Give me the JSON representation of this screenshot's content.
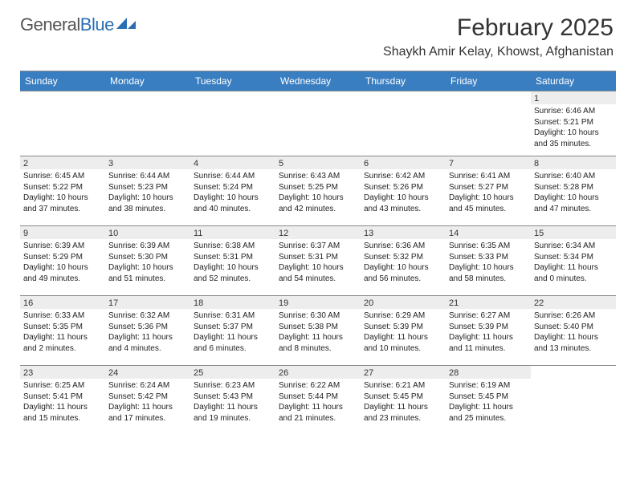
{
  "brand": {
    "name_gray": "General",
    "name_blue": "Blue"
  },
  "title": "February 2025",
  "location": "Shaykh Amir Kelay, Khowst, Afghanistan",
  "day_headers": [
    "Sunday",
    "Monday",
    "Tuesday",
    "Wednesday",
    "Thursday",
    "Friday",
    "Saturday"
  ],
  "colors": {
    "header_bg": "#3a7ec2",
    "header_text": "#ffffff",
    "daynum_bg": "#ededed",
    "rule": "#8a8a8a",
    "logo_blue": "#2a6fb5",
    "text": "#222222"
  },
  "weeks": [
    [
      {
        "n": "",
        "lines": []
      },
      {
        "n": "",
        "lines": []
      },
      {
        "n": "",
        "lines": []
      },
      {
        "n": "",
        "lines": []
      },
      {
        "n": "",
        "lines": []
      },
      {
        "n": "",
        "lines": []
      },
      {
        "n": "1",
        "lines": [
          "Sunrise: 6:46 AM",
          "Sunset: 5:21 PM",
          "Daylight: 10 hours and 35 minutes."
        ]
      }
    ],
    [
      {
        "n": "2",
        "lines": [
          "Sunrise: 6:45 AM",
          "Sunset: 5:22 PM",
          "Daylight: 10 hours and 37 minutes."
        ]
      },
      {
        "n": "3",
        "lines": [
          "Sunrise: 6:44 AM",
          "Sunset: 5:23 PM",
          "Daylight: 10 hours and 38 minutes."
        ]
      },
      {
        "n": "4",
        "lines": [
          "Sunrise: 6:44 AM",
          "Sunset: 5:24 PM",
          "Daylight: 10 hours and 40 minutes."
        ]
      },
      {
        "n": "5",
        "lines": [
          "Sunrise: 6:43 AM",
          "Sunset: 5:25 PM",
          "Daylight: 10 hours and 42 minutes."
        ]
      },
      {
        "n": "6",
        "lines": [
          "Sunrise: 6:42 AM",
          "Sunset: 5:26 PM",
          "Daylight: 10 hours and 43 minutes."
        ]
      },
      {
        "n": "7",
        "lines": [
          "Sunrise: 6:41 AM",
          "Sunset: 5:27 PM",
          "Daylight: 10 hours and 45 minutes."
        ]
      },
      {
        "n": "8",
        "lines": [
          "Sunrise: 6:40 AM",
          "Sunset: 5:28 PM",
          "Daylight: 10 hours and 47 minutes."
        ]
      }
    ],
    [
      {
        "n": "9",
        "lines": [
          "Sunrise: 6:39 AM",
          "Sunset: 5:29 PM",
          "Daylight: 10 hours and 49 minutes."
        ]
      },
      {
        "n": "10",
        "lines": [
          "Sunrise: 6:39 AM",
          "Sunset: 5:30 PM",
          "Daylight: 10 hours and 51 minutes."
        ]
      },
      {
        "n": "11",
        "lines": [
          "Sunrise: 6:38 AM",
          "Sunset: 5:31 PM",
          "Daylight: 10 hours and 52 minutes."
        ]
      },
      {
        "n": "12",
        "lines": [
          "Sunrise: 6:37 AM",
          "Sunset: 5:31 PM",
          "Daylight: 10 hours and 54 minutes."
        ]
      },
      {
        "n": "13",
        "lines": [
          "Sunrise: 6:36 AM",
          "Sunset: 5:32 PM",
          "Daylight: 10 hours and 56 minutes."
        ]
      },
      {
        "n": "14",
        "lines": [
          "Sunrise: 6:35 AM",
          "Sunset: 5:33 PM",
          "Daylight: 10 hours and 58 minutes."
        ]
      },
      {
        "n": "15",
        "lines": [
          "Sunrise: 6:34 AM",
          "Sunset: 5:34 PM",
          "Daylight: 11 hours and 0 minutes."
        ]
      }
    ],
    [
      {
        "n": "16",
        "lines": [
          "Sunrise: 6:33 AM",
          "Sunset: 5:35 PM",
          "Daylight: 11 hours and 2 minutes."
        ]
      },
      {
        "n": "17",
        "lines": [
          "Sunrise: 6:32 AM",
          "Sunset: 5:36 PM",
          "Daylight: 11 hours and 4 minutes."
        ]
      },
      {
        "n": "18",
        "lines": [
          "Sunrise: 6:31 AM",
          "Sunset: 5:37 PM",
          "Daylight: 11 hours and 6 minutes."
        ]
      },
      {
        "n": "19",
        "lines": [
          "Sunrise: 6:30 AM",
          "Sunset: 5:38 PM",
          "Daylight: 11 hours and 8 minutes."
        ]
      },
      {
        "n": "20",
        "lines": [
          "Sunrise: 6:29 AM",
          "Sunset: 5:39 PM",
          "Daylight: 11 hours and 10 minutes."
        ]
      },
      {
        "n": "21",
        "lines": [
          "Sunrise: 6:27 AM",
          "Sunset: 5:39 PM",
          "Daylight: 11 hours and 11 minutes."
        ]
      },
      {
        "n": "22",
        "lines": [
          "Sunrise: 6:26 AM",
          "Sunset: 5:40 PM",
          "Daylight: 11 hours and 13 minutes."
        ]
      }
    ],
    [
      {
        "n": "23",
        "lines": [
          "Sunrise: 6:25 AM",
          "Sunset: 5:41 PM",
          "Daylight: 11 hours and 15 minutes."
        ]
      },
      {
        "n": "24",
        "lines": [
          "Sunrise: 6:24 AM",
          "Sunset: 5:42 PM",
          "Daylight: 11 hours and 17 minutes."
        ]
      },
      {
        "n": "25",
        "lines": [
          "Sunrise: 6:23 AM",
          "Sunset: 5:43 PM",
          "Daylight: 11 hours and 19 minutes."
        ]
      },
      {
        "n": "26",
        "lines": [
          "Sunrise: 6:22 AM",
          "Sunset: 5:44 PM",
          "Daylight: 11 hours and 21 minutes."
        ]
      },
      {
        "n": "27",
        "lines": [
          "Sunrise: 6:21 AM",
          "Sunset: 5:45 PM",
          "Daylight: 11 hours and 23 minutes."
        ]
      },
      {
        "n": "28",
        "lines": [
          "Sunrise: 6:19 AM",
          "Sunset: 5:45 PM",
          "Daylight: 11 hours and 25 minutes."
        ]
      },
      {
        "n": "",
        "lines": []
      }
    ]
  ]
}
